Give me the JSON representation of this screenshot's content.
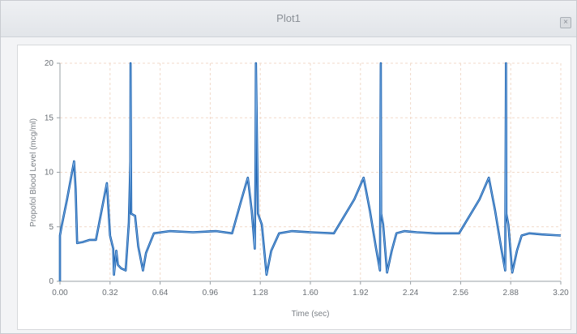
{
  "window": {
    "title": "Plot1",
    "close_label": "×"
  },
  "colors": {
    "trace": "#0f57a8",
    "trace_highlight": "#7fb2e6",
    "grid": "#f1d9c9",
    "axis": "#9aa0a6"
  },
  "chart_data": {
    "type": "line",
    "title": "",
    "xlabel": "Time (sec)",
    "ylabel": "Propofol Blood Level (mcg/ml)",
    "xlim": [
      0.0,
      3.2
    ],
    "ylim": [
      0,
      20
    ],
    "x_ticks": [
      "0.00",
      "0.32",
      "0.64",
      "0.96",
      "1.28",
      "1.60",
      "1.92",
      "2.24",
      "2.56",
      "2.88",
      "3.20"
    ],
    "y_ticks": [
      "0",
      "5",
      "10",
      "15",
      "20"
    ],
    "grid": true,
    "legend": "none",
    "series": [
      {
        "x": [
          0.0,
          0.0,
          0.01,
          0.045,
          0.09,
          0.1,
          0.11,
          0.145,
          0.19,
          0.23,
          0.3,
          0.32,
          0.34,
          0.345,
          0.36,
          0.37,
          0.39,
          0.42,
          0.44,
          0.45,
          0.451,
          0.455,
          0.48,
          0.5,
          0.53,
          0.55,
          0.6,
          0.7,
          0.85,
          1.0,
          1.1,
          1.16,
          1.2,
          1.225,
          1.245,
          1.25,
          1.252,
          1.265,
          1.29,
          1.32,
          1.35,
          1.4,
          1.48,
          1.6,
          1.75,
          1.88,
          1.94,
          1.98,
          2.02,
          2.045,
          2.05,
          2.052,
          2.065,
          2.09,
          2.12,
          2.15,
          2.2,
          2.28,
          2.4,
          2.55,
          2.68,
          2.74,
          2.78,
          2.82,
          2.845,
          2.85,
          2.852,
          2.865,
          2.89,
          2.92,
          2.95,
          3.0,
          3.08,
          3.2
        ],
        "y": [
          0,
          4.2,
          5.0,
          7.5,
          11.0,
          8.5,
          3.5,
          3.6,
          3.8,
          3.8,
          9.0,
          4.2,
          3.0,
          0.6,
          2.8,
          1.5,
          1.2,
          1.0,
          5.4,
          11.0,
          20.0,
          6.2,
          6.0,
          3.2,
          1.0,
          2.6,
          4.4,
          4.6,
          4.5,
          4.6,
          4.4,
          7.5,
          9.5,
          6.5,
          3.0,
          11.0,
          20.0,
          6.2,
          5.2,
          0.6,
          2.8,
          4.4,
          4.6,
          4.5,
          4.4,
          7.5,
          9.5,
          6.5,
          3.0,
          1.0,
          20.0,
          6.2,
          5.2,
          0.8,
          2.8,
          4.4,
          4.6,
          4.5,
          4.4,
          4.4,
          7.5,
          9.5,
          6.5,
          3.0,
          1.0,
          20.0,
          6.2,
          5.2,
          0.8,
          2.8,
          4.2,
          4.4,
          4.3,
          4.2
        ]
      }
    ]
  }
}
